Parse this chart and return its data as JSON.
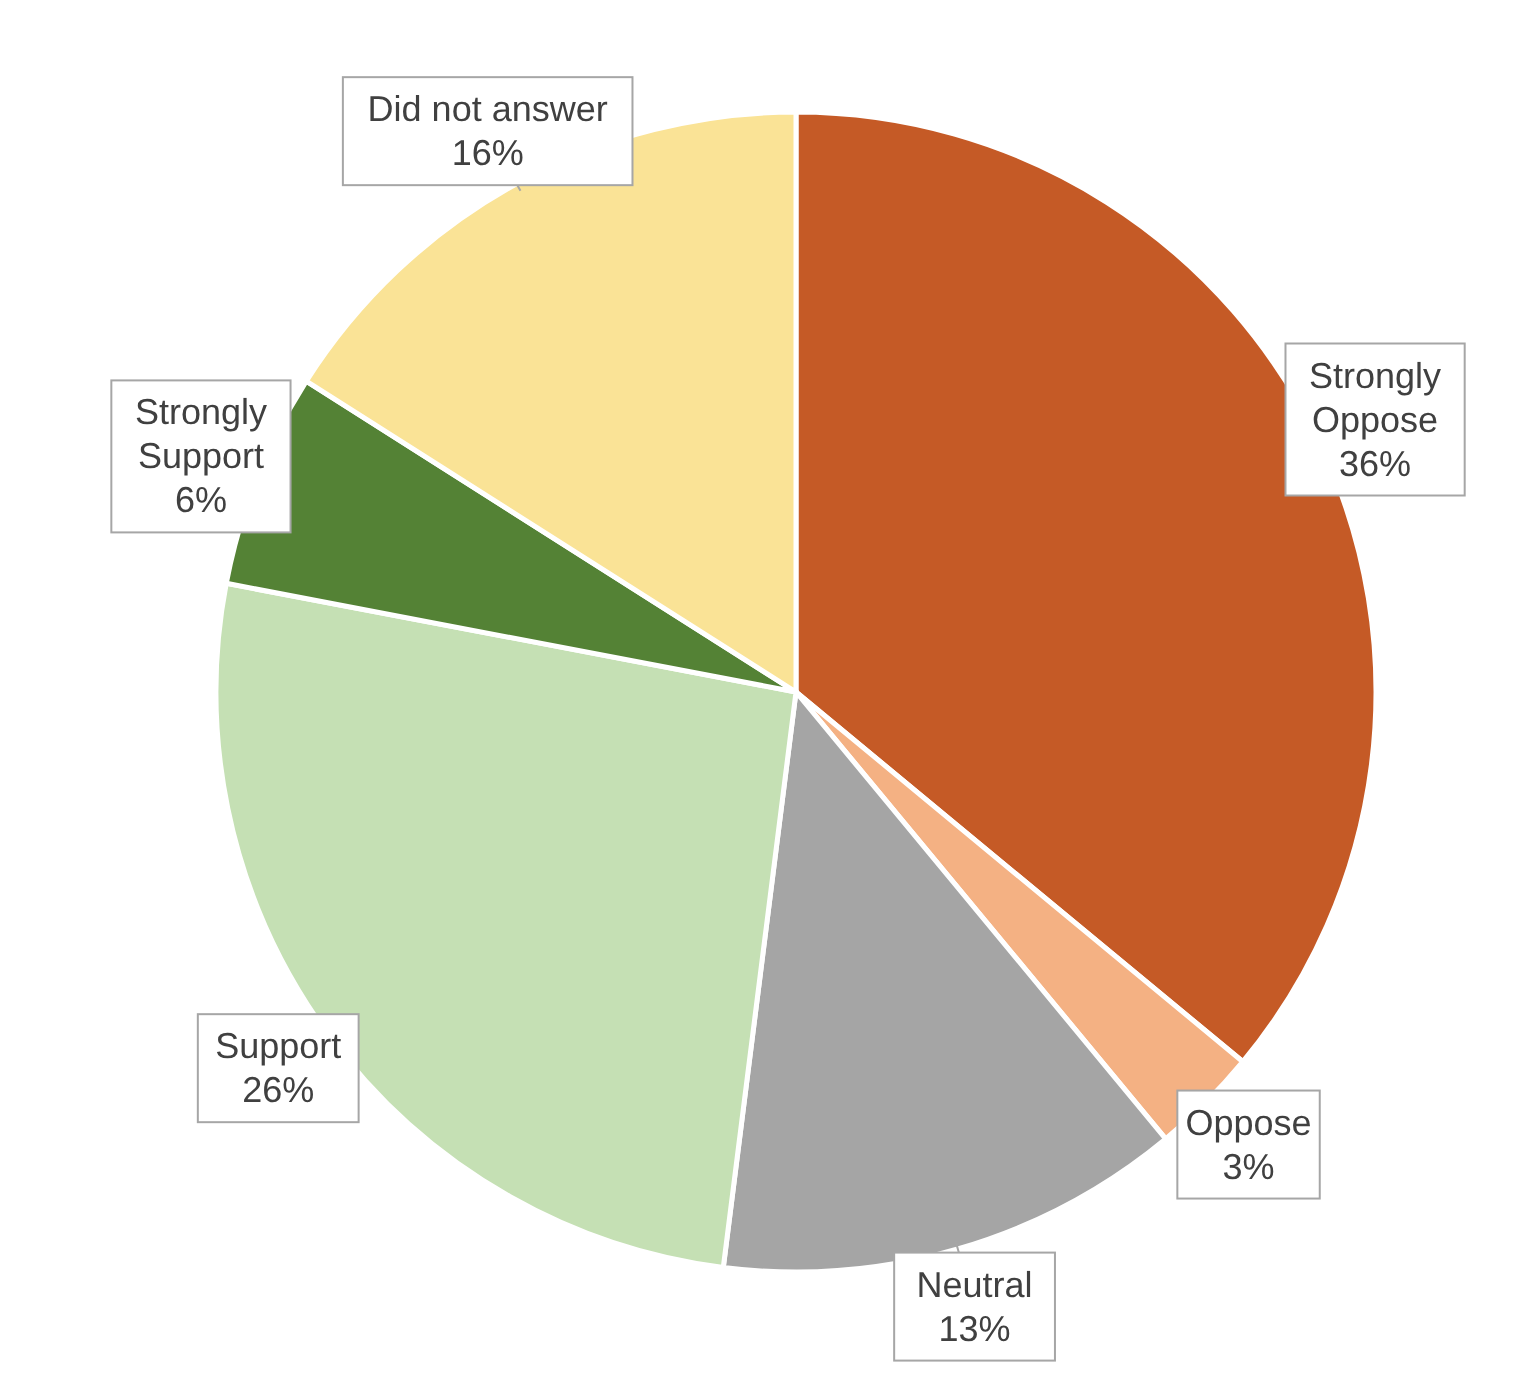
{
  "chart_data": {
    "type": "pie",
    "categories": [
      "Strongly Oppose",
      "Oppose",
      "Neutral",
      "Support",
      "Strongly Support",
      "Did not answer"
    ],
    "values": [
      36,
      3,
      13,
      26,
      6,
      16
    ],
    "colors": [
      "#c55a26",
      "#f4b183",
      "#a5a5a5",
      "#c5e0b4",
      "#548235",
      "#fae396"
    ],
    "value_labels": [
      "36%",
      "3%",
      "13%",
      "26%",
      "6%",
      "16%"
    ]
  }
}
